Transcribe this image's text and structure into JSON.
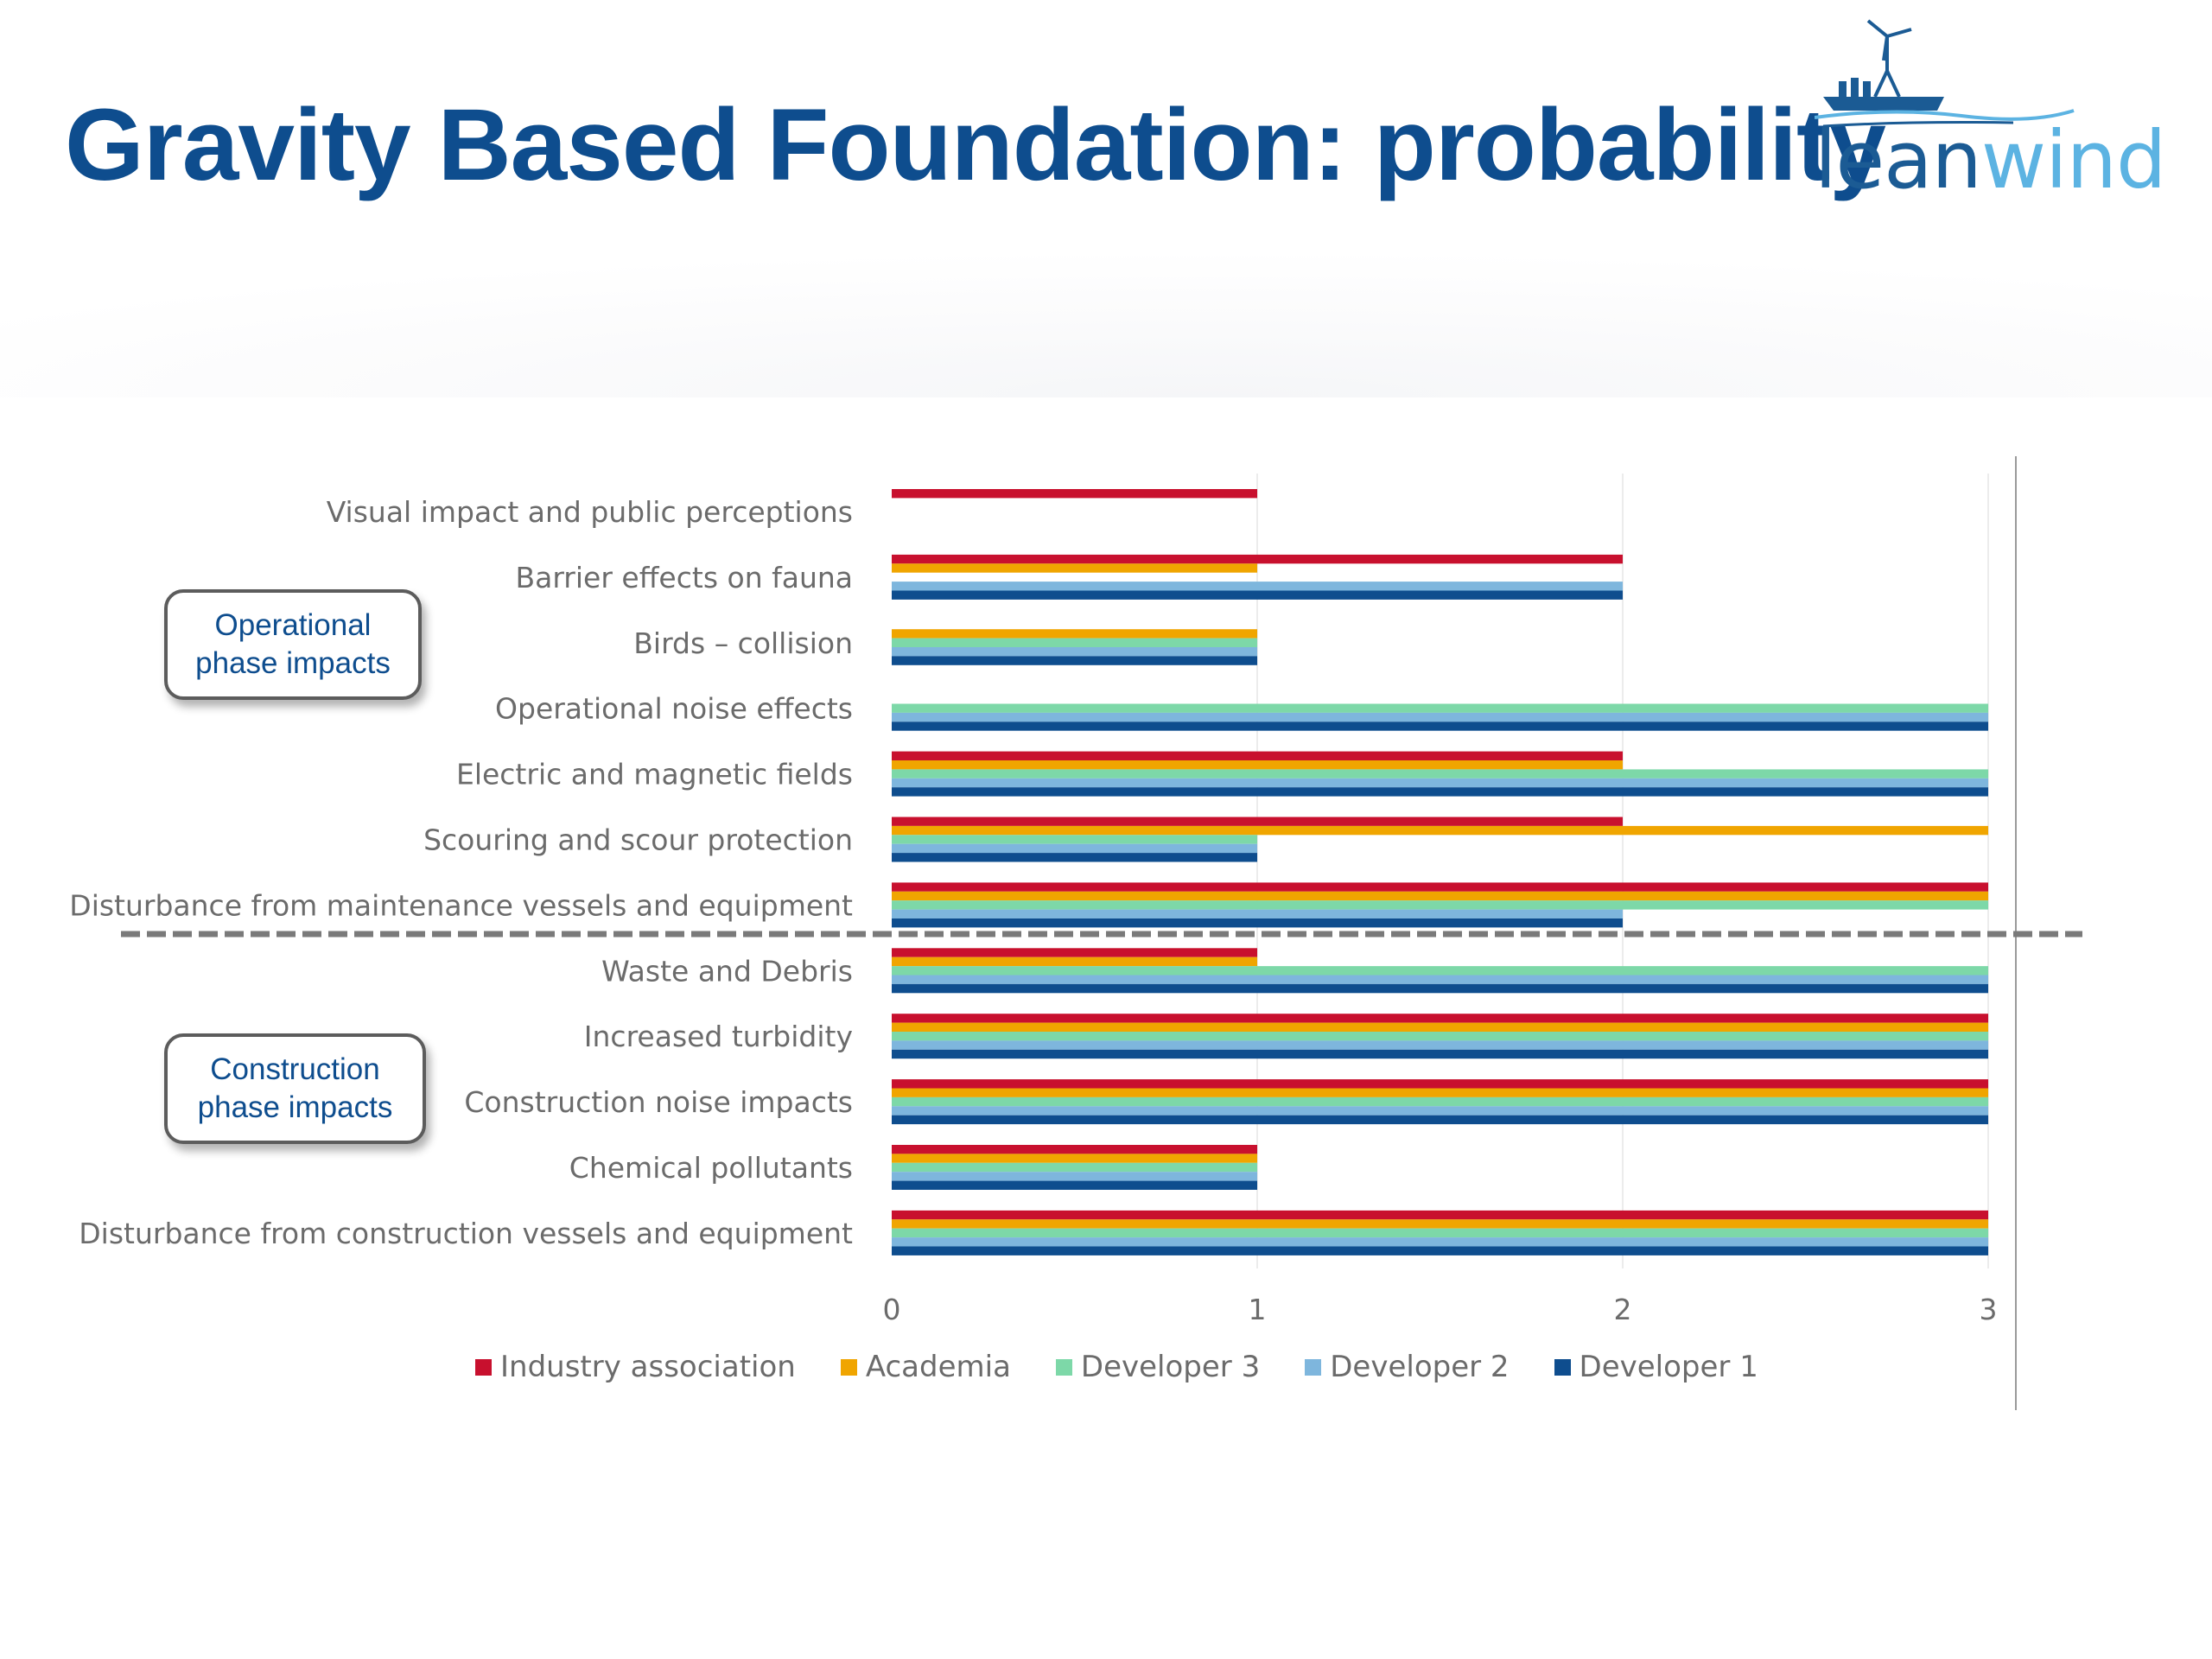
{
  "slide": {
    "title": "Gravity Based Foundation: probability",
    "logo": {
      "word_lean": "lean",
      "word_wind": "wind"
    }
  },
  "groups": {
    "operational": "Operational\nphase impacts",
    "construction": "Construction\nphase impacts"
  },
  "colors": {
    "industry": "#c8102e",
    "academia": "#f0a500",
    "developer3": "#7dd8a8",
    "developer2": "#7eb6dd",
    "developer1": "#0e4d8e"
  },
  "chart_data": {
    "type": "bar",
    "orientation": "horizontal",
    "categories": [
      "Visual impact and public perceptions",
      "Barrier effects on fauna",
      "Birds – collision",
      "Operational noise effects",
      "Electric and magnetic fields",
      "Scouring and scour protection",
      "Disturbance from maintenance vessels and equipment",
      "Waste and Debris",
      "Increased turbidity",
      "Construction noise impacts",
      "Chemical pollutants",
      "Disturbance from construction vessels and equipment"
    ],
    "series": [
      {
        "name": "Industry association",
        "color": "#c8102e",
        "values": [
          1,
          2,
          0,
          0,
          2,
          2,
          3,
          1,
          3,
          3,
          1,
          3
        ]
      },
      {
        "name": "Academia",
        "color": "#f0a500",
        "values": [
          0,
          1,
          1,
          0,
          2,
          3,
          3,
          1,
          3,
          3,
          1,
          3
        ]
      },
      {
        "name": "Developer 3",
        "color": "#7dd8a8",
        "values": [
          0,
          0,
          1,
          3,
          3,
          1,
          3,
          3,
          3,
          3,
          1,
          3
        ]
      },
      {
        "name": "Developer 2",
        "color": "#7eb6dd",
        "values": [
          0,
          2,
          1,
          3,
          3,
          1,
          2,
          3,
          3,
          3,
          1,
          3
        ]
      },
      {
        "name": "Developer 1",
        "color": "#0e4d8e",
        "values": [
          0,
          2,
          1,
          3,
          3,
          1,
          2,
          3,
          3,
          3,
          1,
          3
        ]
      }
    ],
    "xlim": [
      0,
      3
    ],
    "xticks": [
      "0",
      "1",
      "2",
      "3"
    ],
    "grid": true,
    "legend_position": "bottom"
  }
}
